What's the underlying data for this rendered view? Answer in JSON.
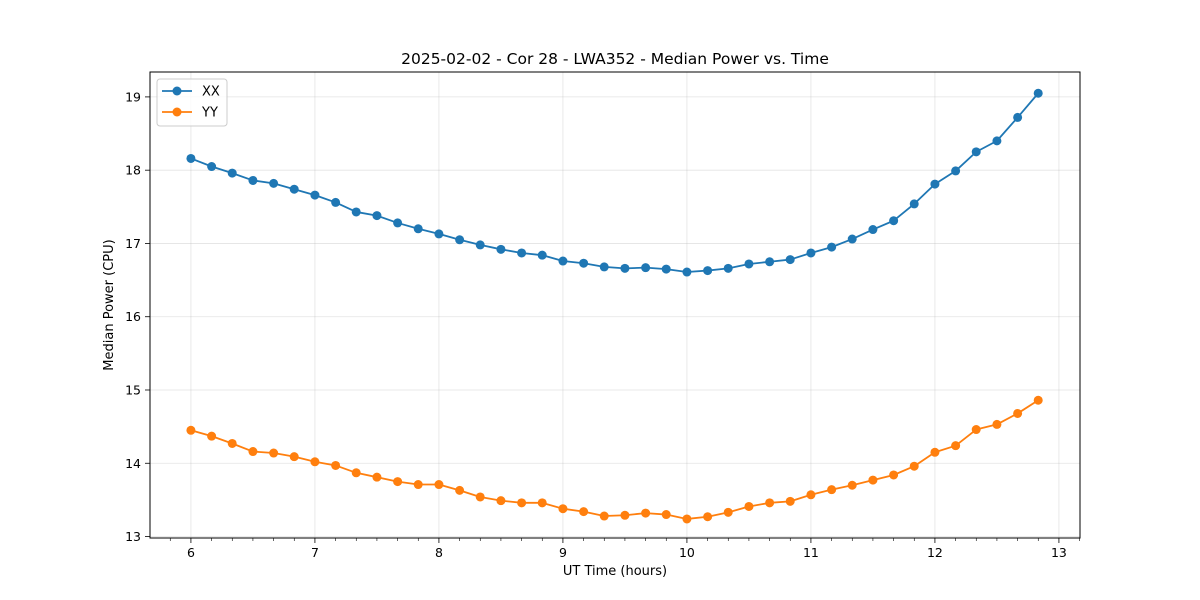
{
  "chart_data": {
    "type": "line",
    "title": "2025-02-02 - Cor 28 - LWA352 - Median Power vs. Time",
    "xlabel": "UT Time (hours)",
    "ylabel": "Median Power (CPU)",
    "xlim": [
      5.67,
      13.17
    ],
    "ylim": [
      12.98,
      19.34
    ],
    "xticks": [
      "6",
      "7",
      "8",
      "9",
      "10",
      "11",
      "12",
      "13"
    ],
    "yticks": [
      "13",
      "14",
      "15",
      "16",
      "17",
      "18",
      "19"
    ],
    "grid": true,
    "legend_position": "top-left",
    "x": [
      6.0,
      6.167,
      6.333,
      6.5,
      6.667,
      6.833,
      7.0,
      7.167,
      7.333,
      7.5,
      7.667,
      7.833,
      8.0,
      8.167,
      8.333,
      8.5,
      8.667,
      8.833,
      9.0,
      9.167,
      9.333,
      9.5,
      9.667,
      9.833,
      10.0,
      10.167,
      10.333,
      10.5,
      10.667,
      10.833,
      11.0,
      11.167,
      11.333,
      11.5,
      11.667,
      11.833,
      12.0,
      12.167,
      12.333,
      12.5,
      12.667,
      12.833
    ],
    "series": [
      {
        "name": "XX",
        "color": "#1f77b4",
        "values": [
          18.16,
          18.05,
          17.96,
          17.86,
          17.82,
          17.74,
          17.66,
          17.56,
          17.43,
          17.38,
          17.28,
          17.2,
          17.13,
          17.05,
          16.98,
          16.92,
          16.87,
          16.84,
          16.76,
          16.73,
          16.68,
          16.66,
          16.67,
          16.65,
          16.61,
          16.63,
          16.66,
          16.72,
          16.75,
          16.78,
          16.87,
          16.95,
          17.06,
          17.19,
          17.31,
          17.54,
          17.81,
          17.99,
          18.25,
          18.4,
          18.72,
          19.05
        ]
      },
      {
        "name": "YY",
        "color": "#ff7f0e",
        "values": [
          14.45,
          14.37,
          14.27,
          14.16,
          14.14,
          14.09,
          14.02,
          13.97,
          13.87,
          13.81,
          13.75,
          13.71,
          13.71,
          13.63,
          13.54,
          13.49,
          13.46,
          13.46,
          13.38,
          13.34,
          13.28,
          13.29,
          13.32,
          13.3,
          13.24,
          13.27,
          13.33,
          13.41,
          13.46,
          13.48,
          13.57,
          13.64,
          13.7,
          13.77,
          13.84,
          13.96,
          14.15,
          14.24,
          14.46,
          14.53,
          14.68,
          14.86
        ]
      }
    ]
  }
}
